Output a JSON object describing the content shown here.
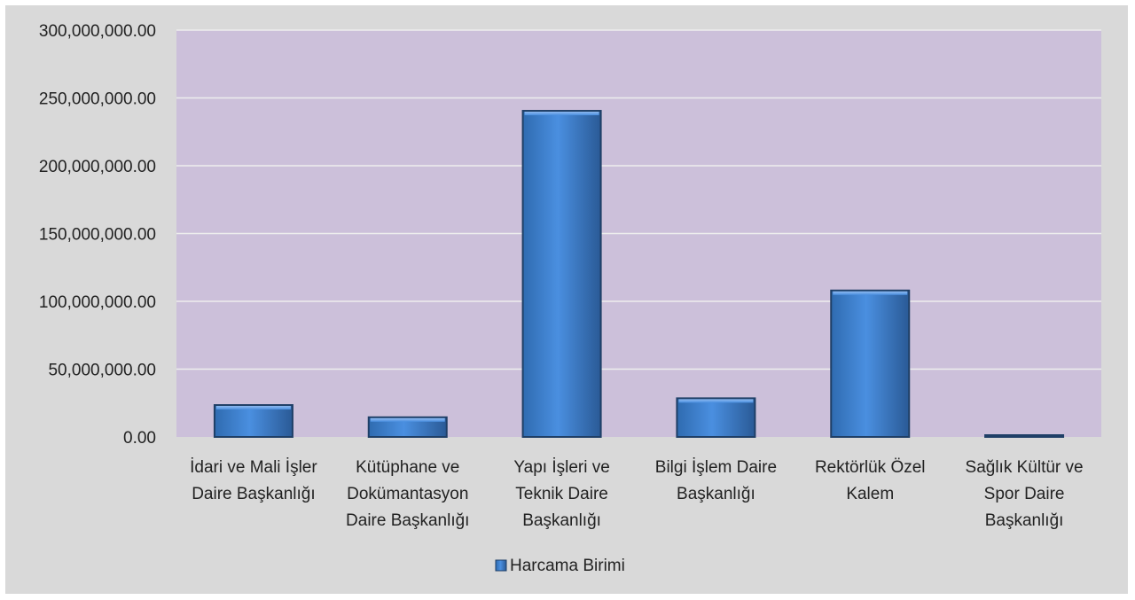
{
  "chart_data": {
    "type": "bar",
    "categories": [
      [
        "İdari ve Mali İşler",
        "Daire Başkanlığı"
      ],
      [
        "Kütüphane ve",
        "Dokümantasyon",
        "Daire Başkanlığı"
      ],
      [
        "Yapı İşleri ve",
        "Teknik Daire",
        "Başkanlığı"
      ],
      [
        "Bilgi İşlem Daire",
        "Başkanlığı"
      ],
      [
        "Rektörlük Özel",
        "Kalem"
      ],
      [
        "Sağlık Kültür ve",
        "Spor Daire",
        "Başkanlığı"
      ]
    ],
    "series": [
      {
        "name": "Harcama Birimi",
        "values": [
          23500000,
          14500000,
          240500000,
          28500000,
          108000000,
          1200000
        ]
      }
    ],
    "ylim": [
      0,
      300000000
    ],
    "yticks": [
      0,
      50000000,
      100000000,
      150000000,
      200000000,
      250000000,
      300000000
    ],
    "ytick_labels": [
      "0.00",
      "50,000,000.00",
      "100,000,000.00",
      "150,000,000.00",
      "200,000,000.00",
      "250,000,000.00",
      "300,000,000.00"
    ],
    "grid": true,
    "legend_position": "bottom",
    "colors": {
      "frame_bg": "#d9d9d9",
      "plot_bg": "#ccc0da",
      "grid": "#eeeeee",
      "bar_light": "#4a8fe0",
      "bar_dark": "#2a5f9e",
      "bar_edge": "#1f3f66"
    }
  }
}
